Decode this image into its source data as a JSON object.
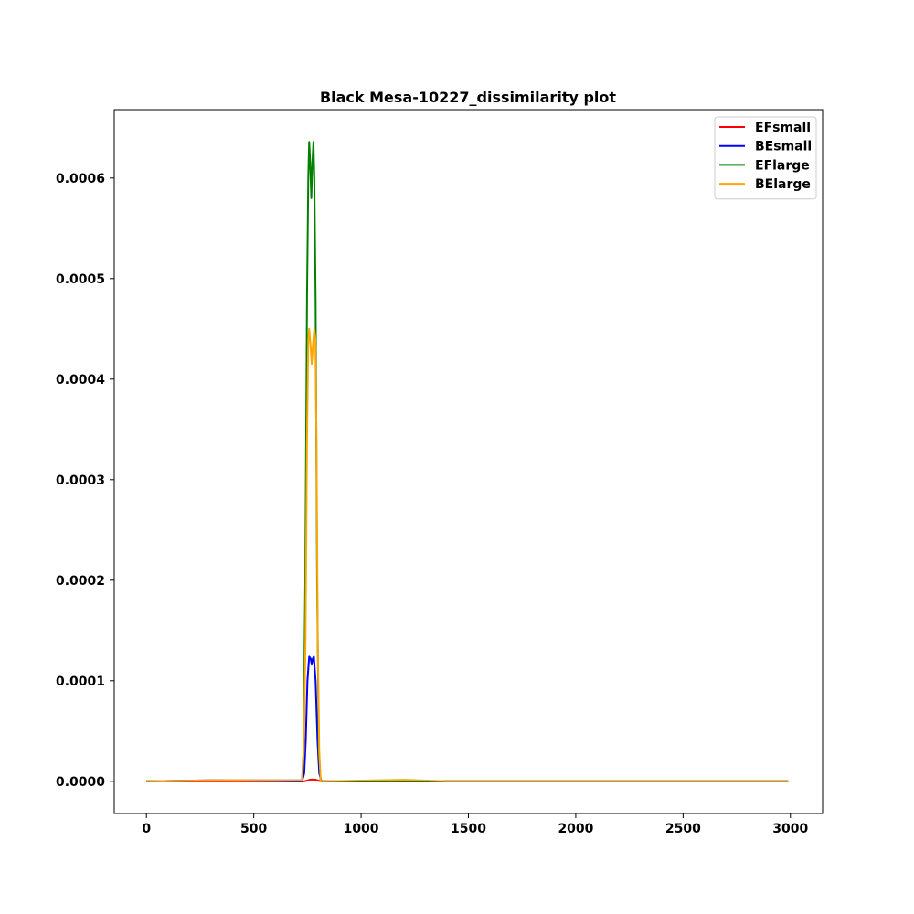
{
  "chart_data": {
    "type": "line",
    "title": "Black Mesa-10227_dissimilarity plot",
    "xlabel": "",
    "ylabel": "",
    "xlim": [
      -150,
      3150
    ],
    "ylim": [
      -3.2e-05,
      0.000668
    ],
    "x_ticks": [
      0,
      500,
      1000,
      1500,
      2000,
      2500,
      3000
    ],
    "x_tick_labels": [
      "0",
      "500",
      "1000",
      "1500",
      "2000",
      "2500",
      "3000"
    ],
    "y_ticks": [
      0,
      0.0001,
      0.0002,
      0.0003,
      0.0004,
      0.0005,
      0.0006
    ],
    "y_tick_labels": [
      "0.0000",
      "0.0001",
      "0.0002",
      "0.0003",
      "0.0004",
      "0.0005",
      "0.0006"
    ],
    "grid": false,
    "legend_position": "top-right",
    "series": [
      {
        "name": "EFsmall",
        "color": "#ff0000",
        "points": [
          [
            0,
            0
          ],
          [
            700,
            0
          ],
          [
            735,
            0
          ],
          [
            745,
            5e-07
          ],
          [
            760,
            1.5e-06
          ],
          [
            770,
            1.8e-06
          ],
          [
            780,
            1.8e-06
          ],
          [
            790,
            1.5e-06
          ],
          [
            805,
            5e-07
          ],
          [
            815,
            0
          ],
          [
            2990,
            0
          ]
        ]
      },
      {
        "name": "BEsmall",
        "color": "#0000ff",
        "points": [
          [
            0,
            0
          ],
          [
            300,
            1e-06
          ],
          [
            700,
            0
          ],
          [
            725,
            0
          ],
          [
            735,
            8e-06
          ],
          [
            742,
            4e-05
          ],
          [
            750,
            0.0001
          ],
          [
            758,
            0.000124
          ],
          [
            765,
            0.000122
          ],
          [
            770,
            0.000116
          ],
          [
            775,
            0.000122
          ],
          [
            780,
            0.000124
          ],
          [
            788,
            0.0001
          ],
          [
            797,
            4e-05
          ],
          [
            805,
            8e-06
          ],
          [
            815,
            0
          ],
          [
            2990,
            0
          ]
        ]
      },
      {
        "name": "EFlarge",
        "color": "#008000",
        "points": [
          [
            0,
            0
          ],
          [
            300,
            1e-06
          ],
          [
            700,
            1e-06
          ],
          [
            725,
            1e-06
          ],
          [
            732,
            3e-05
          ],
          [
            740,
            0.0002
          ],
          [
            748,
            0.00048
          ],
          [
            754,
            0.0006
          ],
          [
            758,
            0.000636
          ],
          [
            763,
            0.000615
          ],
          [
            768,
            0.00058
          ],
          [
            773,
            0.000615
          ],
          [
            778,
            0.000636
          ],
          [
            782,
            0.0006
          ],
          [
            788,
            0.00048
          ],
          [
            795,
            0.0002
          ],
          [
            803,
            3e-05
          ],
          [
            812,
            0
          ],
          [
            2990,
            0
          ]
        ]
      },
      {
        "name": "BElarge",
        "color": "#ffa500",
        "points": [
          [
            0,
            0
          ],
          [
            300,
            1e-06
          ],
          [
            700,
            1e-06
          ],
          [
            725,
            1e-06
          ],
          [
            733,
            3e-05
          ],
          [
            741,
            0.00014
          ],
          [
            748,
            0.00034
          ],
          [
            754,
            0.00044
          ],
          [
            758,
            0.00045
          ],
          [
            764,
            0.000435
          ],
          [
            770,
            0.000415
          ],
          [
            776,
            0.000435
          ],
          [
            782,
            0.00045
          ],
          [
            787,
            0.00044
          ],
          [
            792,
            0.00034
          ],
          [
            798,
            0.00014
          ],
          [
            805,
            3e-05
          ],
          [
            812,
            0
          ],
          [
            1200,
            1.5e-06
          ],
          [
            1400,
            0
          ],
          [
            2990,
            0
          ]
        ]
      }
    ]
  }
}
